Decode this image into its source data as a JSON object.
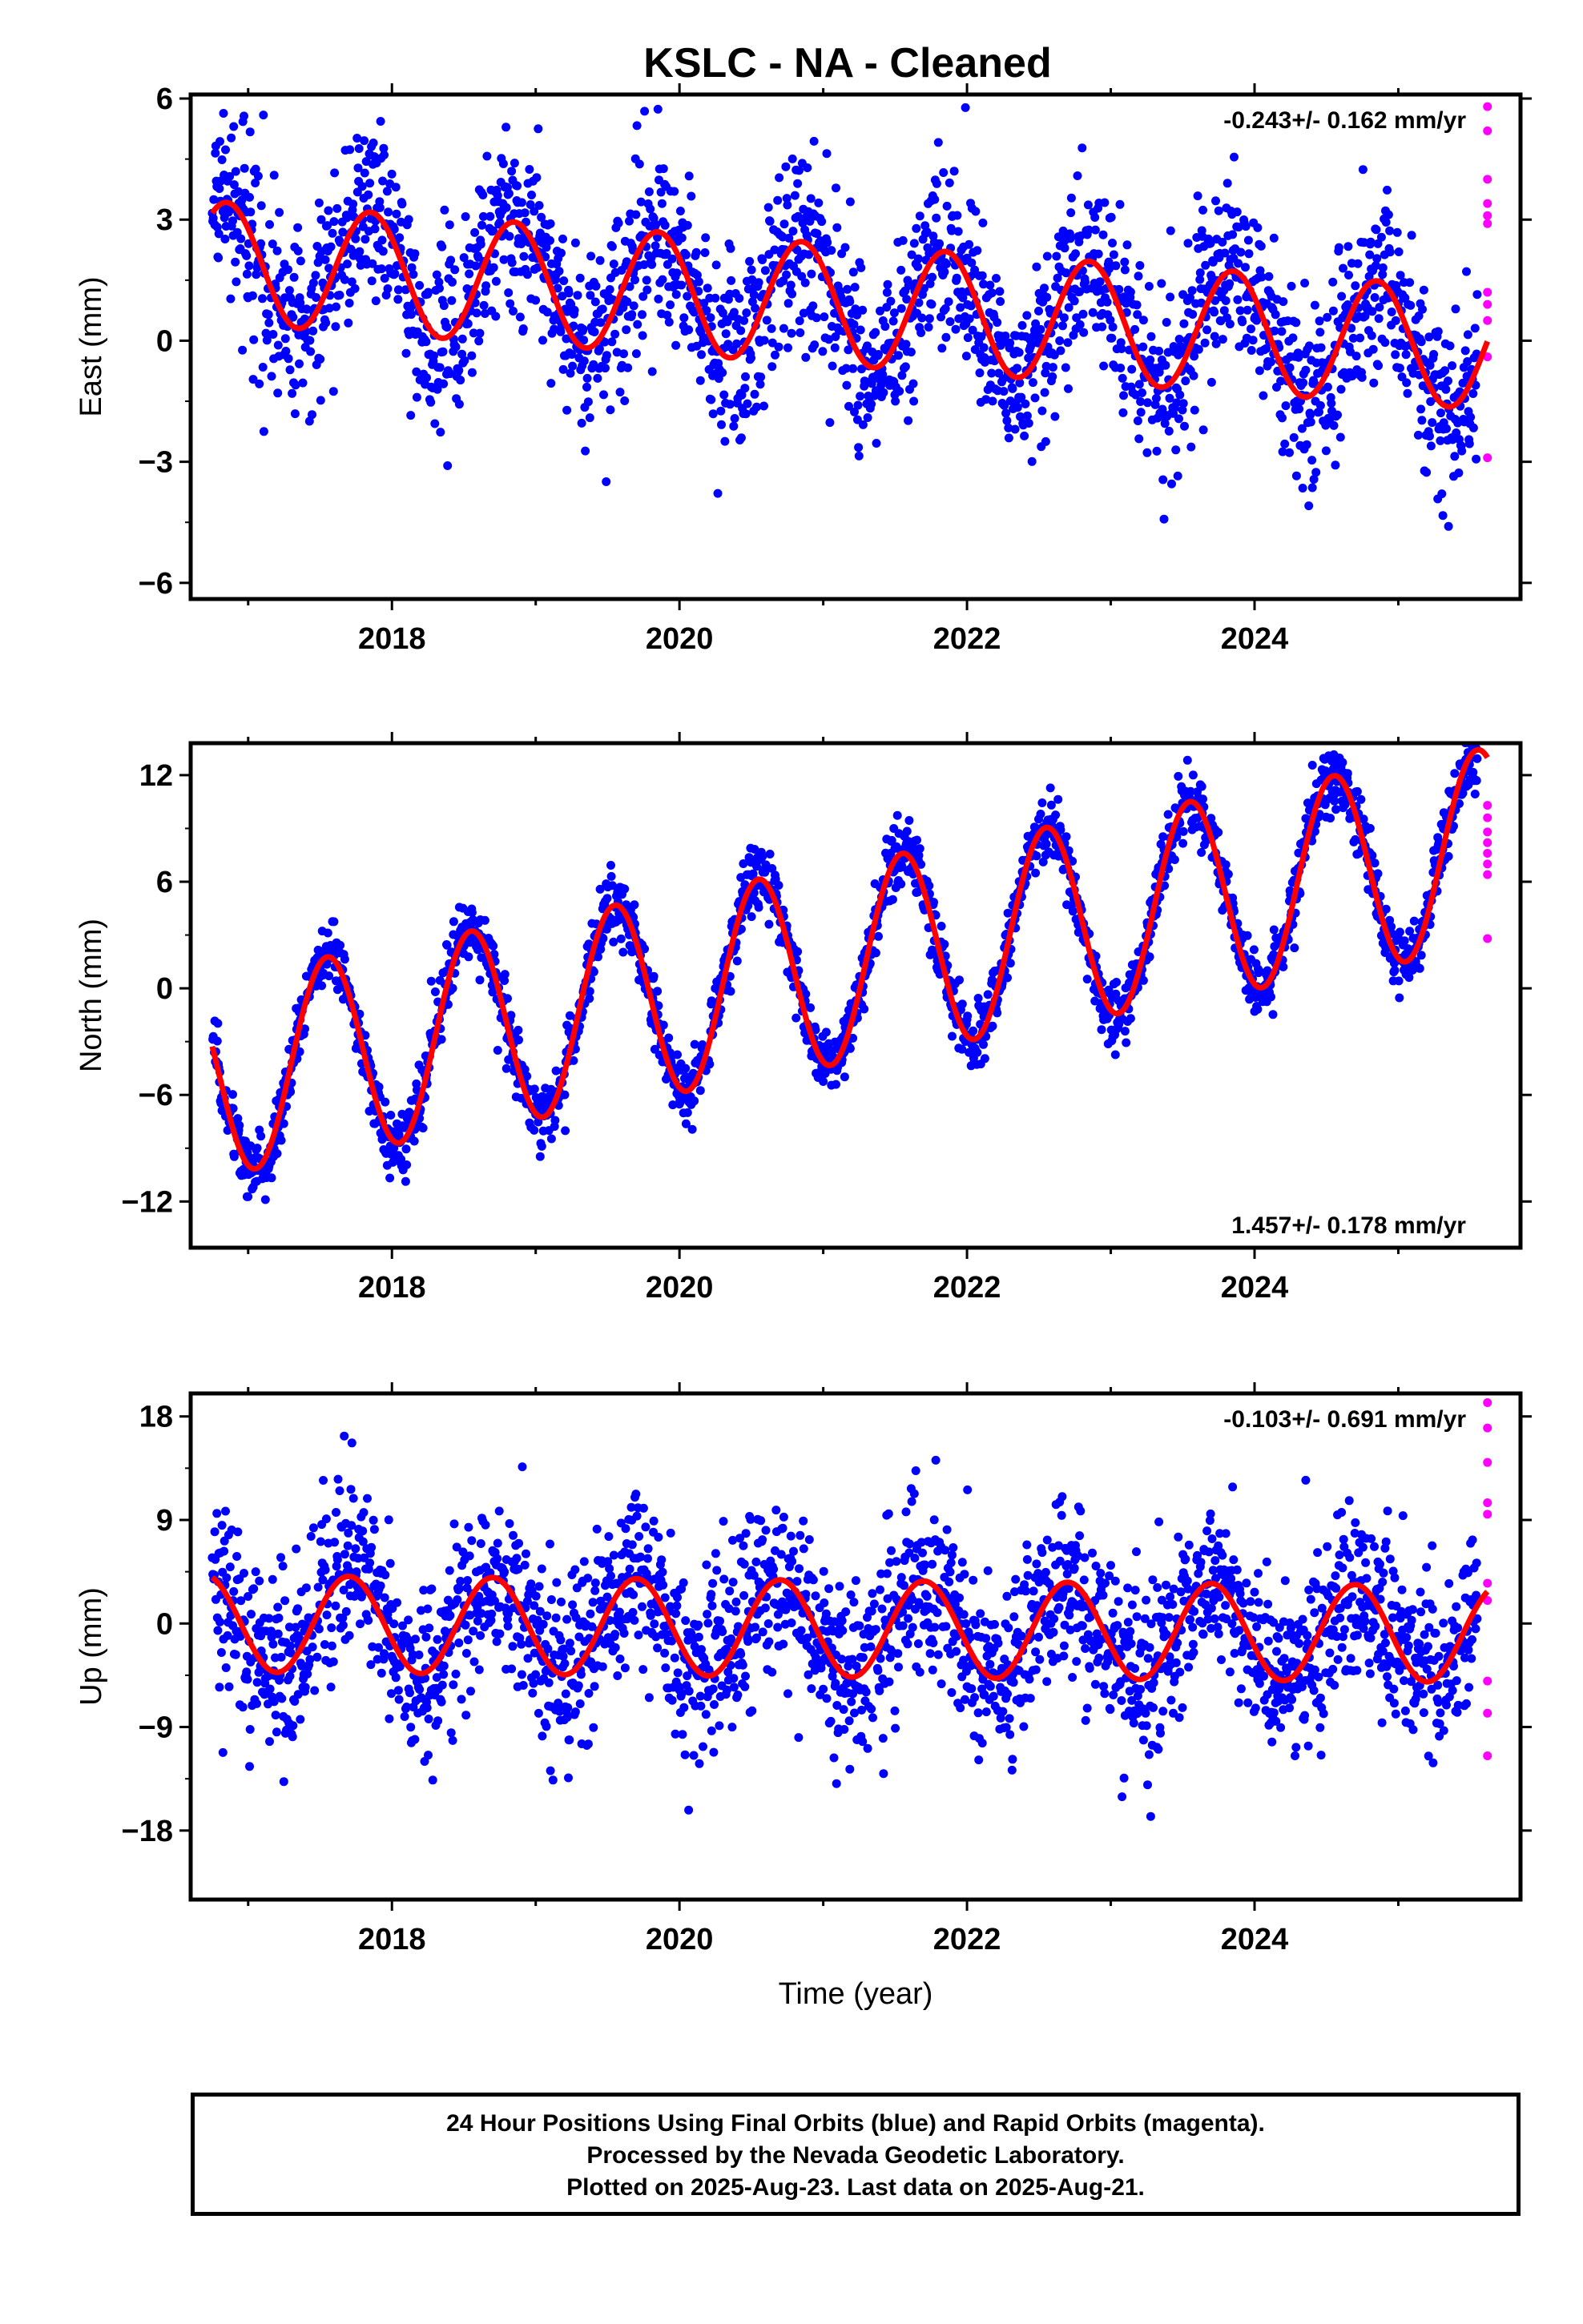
{
  "title": "KSLC  - NA - Cleaned",
  "footer": {
    "line1": "24 Hour Positions Using Final Orbits (blue) and Rapid Orbits (magenta).",
    "line2": "Processed by the Nevada Geodetic Laboratory.",
    "line3": "Plotted on 2025-Aug-23. Last data on 2025-Aug-21."
  },
  "colors": {
    "final": "#0000ff",
    "rapid": "#ff00ff",
    "model": "#ff0000"
  },
  "chart_data": [
    {
      "type": "scatter",
      "component": "east",
      "ylabel": "East (mm)",
      "xlabel": "",
      "rate": "-0.243+/- 0.162 mm/yr",
      "rate_position": "top-right",
      "xlim": [
        2016.6,
        2025.85
      ],
      "ylim": [
        -6.4,
        6.1
      ],
      "xticks": [
        2018,
        2020,
        2022,
        2024
      ],
      "yticks": [
        -6,
        -3,
        0,
        3,
        6
      ],
      "ytick_labels": [
        "−6",
        "−3",
        "0",
        "3",
        "6"
      ],
      "model": {
        "offset": 1.95,
        "rate": -0.243,
        "annual_amp": 1.5,
        "annual_peak": 0.85,
        "t0": 2016.75,
        "end": 2025.62
      },
      "scatter": 1.15,
      "x_start": 2016.75,
      "x_end": 2025.55,
      "rapid_points": [
        [
          2025.62,
          5.8
        ],
        [
          2025.62,
          5.2
        ],
        [
          2025.62,
          4.0
        ],
        [
          2025.62,
          3.4
        ],
        [
          2025.62,
          3.1
        ],
        [
          2025.62,
          2.9
        ],
        [
          2025.62,
          1.2
        ],
        [
          2025.62,
          0.9
        ],
        [
          2025.62,
          0.5
        ],
        [
          2025.62,
          -0.4
        ],
        [
          2025.62,
          -2.9
        ]
      ]
    },
    {
      "type": "scatter",
      "component": "north",
      "ylabel": "North (mm)",
      "xlabel": "",
      "rate": "1.457+/- 0.178 mm/yr",
      "rate_position": "bottom-right",
      "xlim": [
        2016.6,
        2025.85
      ],
      "ylim": [
        -14.6,
        13.8
      ],
      "xticks": [
        2018,
        2020,
        2022,
        2024
      ],
      "yticks": [
        -12,
        -6,
        0,
        6,
        12
      ],
      "ytick_labels": [
        "−12",
        "−6",
        "0",
        "6",
        "12"
      ],
      "model": {
        "offset": -5.0,
        "rate": 1.457,
        "annual_amp": 5.6,
        "annual_peak": 0.55,
        "t0": 2016.75,
        "end": 2025.62
      },
      "scatter": 0.9,
      "x_start": 2016.75,
      "x_end": 2025.55,
      "rapid_points": [
        [
          2025.62,
          10.3
        ],
        [
          2025.62,
          9.6
        ],
        [
          2025.62,
          8.8
        ],
        [
          2025.62,
          8.2
        ],
        [
          2025.62,
          7.6
        ],
        [
          2025.62,
          7.0
        ],
        [
          2025.62,
          6.4
        ],
        [
          2025.62,
          2.8
        ]
      ]
    },
    {
      "type": "scatter",
      "component": "up",
      "ylabel": "Up (mm)",
      "xlabel": "Time (year)",
      "rate": "-0.103+/- 0.691 mm/yr",
      "rate_position": "top-right",
      "xlim": [
        2016.6,
        2025.85
      ],
      "ylim": [
        -24.0,
        20.0
      ],
      "xticks": [
        2018,
        2020,
        2022,
        2024
      ],
      "yticks": [
        -18,
        -9,
        0,
        9,
        18
      ],
      "ytick_labels": [
        "−18",
        "−9",
        "0",
        "9",
        "18"
      ],
      "model": {
        "offset": 0.0,
        "rate": -0.103,
        "annual_amp": 4.2,
        "annual_peak": 0.7,
        "t0": 2016.75,
        "end": 2025.62
      },
      "scatter": 4.0,
      "x_start": 2016.75,
      "x_end": 2025.55,
      "rapid_points": [
        [
          2025.62,
          19.2
        ],
        [
          2025.62,
          17.0
        ],
        [
          2025.62,
          14.0
        ],
        [
          2025.62,
          10.5
        ],
        [
          2025.62,
          9.5
        ],
        [
          2025.62,
          3.5
        ],
        [
          2025.62,
          2.0
        ],
        [
          2025.62,
          -5.0
        ],
        [
          2025.62,
          -7.8
        ],
        [
          2025.62,
          -11.5
        ]
      ]
    }
  ]
}
